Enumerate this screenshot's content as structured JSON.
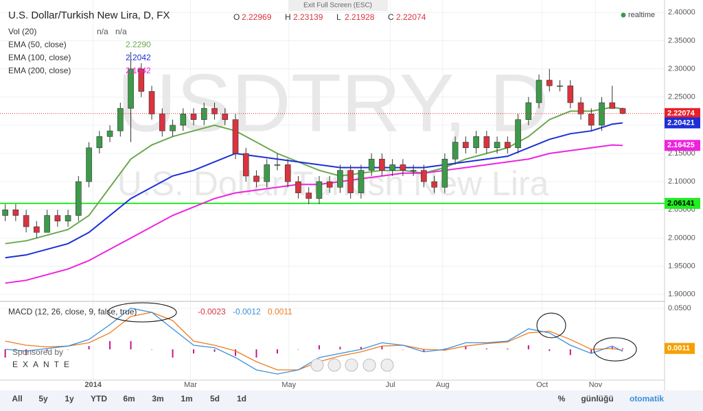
{
  "header": {
    "exit": "Exit Full Screen (ESC)",
    "title": "U.S. Dollar/Turkish New Lira, D, FX",
    "ohlc": [
      [
        "O",
        "2.22969"
      ],
      [
        "H",
        "2.23139"
      ],
      [
        "L",
        "2.21928"
      ],
      [
        "C",
        "2.22074"
      ]
    ],
    "realtime": "realtime"
  },
  "legend": [
    {
      "name": "Vol (20)",
      "values": [
        "n/a",
        "n/a"
      ]
    },
    {
      "name": "EMA (50, close)",
      "values": [
        "2.2290"
      ]
    },
    {
      "name": "EMA (100, close)",
      "values": [
        "2.2042"
      ]
    },
    {
      "name": "EMA (200, close)",
      "values": [
        "2.1642"
      ]
    }
  ],
  "watermark": [
    "USDTRY, D",
    "U.S. Dollar/Turkish New Lira"
  ],
  "macd_legend": {
    "name": "MACD (12, 26, close, 9, false, true)",
    "values": [
      "-0.0023",
      "-0.0012",
      "0.0011"
    ]
  },
  "sponsor": [
    "Sponsored by",
    "EXANTE"
  ],
  "toolbar_left": [
    "All",
    "5y",
    "1y",
    "YTD",
    "6m",
    "3m",
    "1m",
    "5d",
    "1d"
  ],
  "toolbar_right": [
    "%",
    "günlüğü",
    "otomatik"
  ],
  "chart_data": {
    "type": "candlestick",
    "up_color": "#3d9a4a",
    "down_color": "#d9343f",
    "xlim": [
      -0.5,
      63
    ],
    "xticks": [
      {
        "value": 8.4,
        "label": "2014"
      },
      {
        "value": 17.7,
        "label": "Mar"
      },
      {
        "value": 27.1,
        "label": "May"
      },
      {
        "value": 36.8,
        "label": "Jul"
      },
      {
        "value": 41.8,
        "label": "Aug"
      },
      {
        "value": 51.3,
        "label": "Oct"
      },
      {
        "value": 56.4,
        "label": "Nov"
      }
    ],
    "ylim": [
      1.89,
      2.41
    ],
    "yticks": [
      {
        "value": 1.9,
        "label": "1.90000"
      },
      {
        "value": 1.95,
        "label": "1.95000"
      },
      {
        "value": 2.0,
        "label": "2.00000"
      },
      {
        "value": 2.05,
        "label": "2.05000"
      },
      {
        "value": 2.1,
        "label": "2.10000"
      },
      {
        "value": 2.15,
        "label": "2.15000"
      },
      {
        "value": 2.2,
        "label": "2.20000"
      },
      {
        "value": 2.25,
        "label": "2.25000"
      },
      {
        "value": 2.3,
        "label": "2.30000"
      },
      {
        "value": 2.35,
        "label": "2.35000"
      },
      {
        "value": 2.4,
        "label": "2.40000"
      }
    ],
    "grid": true,
    "open": [
      2.04,
      2.05,
      2.04,
      2.02,
      2.01,
      2.04,
      2.03,
      2.04,
      2.1,
      2.16,
      2.18,
      2.19,
      2.23,
      2.3,
      2.26,
      2.22,
      2.19,
      2.2,
      2.22,
      2.21,
      2.23,
      2.22,
      2.21,
      2.15,
      2.11,
      2.1,
      2.13,
      2.13,
      2.1,
      2.08,
      2.07,
      2.1,
      2.09,
      2.12,
      2.08,
      2.12,
      2.14,
      2.12,
      2.13,
      2.12,
      2.12,
      2.1,
      2.09,
      2.14,
      2.17,
      2.16,
      2.18,
      2.16,
      2.17,
      2.16,
      2.21,
      2.24,
      2.28,
      2.27,
      2.27,
      2.24,
      2.22,
      2.2,
      2.24,
      2.22969
    ],
    "high": [
      2.06,
      2.06,
      2.05,
      2.03,
      2.05,
      2.05,
      2.05,
      2.11,
      2.17,
      2.19,
      2.2,
      2.24,
      2.33,
      2.31,
      2.27,
      2.23,
      2.21,
      2.23,
      2.23,
      2.24,
      2.24,
      2.23,
      2.22,
      2.16,
      2.12,
      2.14,
      2.15,
      2.14,
      2.11,
      2.09,
      2.11,
      2.11,
      2.13,
      2.13,
      2.13,
      2.15,
      2.15,
      2.14,
      2.14,
      2.13,
      2.13,
      2.11,
      2.15,
      2.18,
      2.18,
      2.19,
      2.19,
      2.18,
      2.18,
      2.22,
      2.25,
      2.29,
      2.3,
      2.28,
      2.28,
      2.25,
      2.23,
      2.25,
      2.27,
      2.23139
    ],
    "low": [
      2.03,
      2.03,
      2.01,
      2.0,
      2.01,
      2.02,
      2.02,
      2.03,
      2.09,
      2.15,
      2.17,
      2.18,
      2.17,
      2.25,
      2.21,
      2.18,
      2.18,
      2.19,
      2.2,
      2.2,
      2.21,
      2.2,
      2.14,
      2.1,
      2.09,
      2.09,
      2.12,
      2.09,
      2.07,
      2.06,
      2.06,
      2.08,
      2.08,
      2.07,
      2.07,
      2.11,
      2.11,
      2.11,
      2.11,
      2.11,
      2.09,
      2.08,
      2.08,
      2.13,
      2.15,
      2.15,
      2.15,
      2.15,
      2.15,
      2.15,
      2.2,
      2.23,
      2.26,
      2.26,
      2.23,
      2.21,
      2.19,
      2.19,
      2.23,
      2.21928
    ],
    "close": [
      2.05,
      2.04,
      2.02,
      2.01,
      2.04,
      2.03,
      2.04,
      2.1,
      2.16,
      2.18,
      2.19,
      2.23,
      2.3,
      2.26,
      2.22,
      2.19,
      2.2,
      2.22,
      2.21,
      2.23,
      2.22,
      2.21,
      2.15,
      2.11,
      2.1,
      2.13,
      2.13,
      2.1,
      2.08,
      2.07,
      2.1,
      2.09,
      2.12,
      2.08,
      2.12,
      2.14,
      2.12,
      2.13,
      2.12,
      2.12,
      2.1,
      2.09,
      2.14,
      2.17,
      2.16,
      2.18,
      2.16,
      2.17,
      2.16,
      2.21,
      2.24,
      2.28,
      2.27,
      2.27,
      2.24,
      2.22,
      2.2,
      2.24,
      2.22969,
      2.22074
    ],
    "series": [
      {
        "name": "EMA (50, close)",
        "color": "#6aa84f",
        "x": [
          0,
          2,
          4,
          6,
          8,
          10,
          12,
          14,
          16,
          18,
          20,
          22,
          24,
          26,
          28,
          30,
          32,
          34,
          36,
          38,
          40,
          42,
          44,
          46,
          48,
          50,
          52,
          54,
          56,
          58,
          59
        ],
        "values": [
          1.99,
          1.995,
          2.005,
          2.015,
          2.04,
          2.09,
          2.14,
          2.165,
          2.18,
          2.19,
          2.2,
          2.19,
          2.17,
          2.15,
          2.135,
          2.12,
          2.11,
          2.115,
          2.12,
          2.12,
          2.115,
          2.125,
          2.14,
          2.15,
          2.16,
          2.18,
          2.21,
          2.225,
          2.225,
          2.232,
          2.229
        ]
      },
      {
        "name": "EMA (100, close)",
        "color": "#1c2fd6",
        "x": [
          0,
          2,
          4,
          6,
          8,
          10,
          12,
          14,
          16,
          18,
          20,
          22,
          24,
          26,
          28,
          30,
          32,
          34,
          36,
          38,
          40,
          42,
          44,
          46,
          48,
          50,
          52,
          54,
          56,
          58,
          59
        ],
        "values": [
          1.965,
          1.97,
          1.98,
          1.99,
          2.01,
          2.04,
          2.07,
          2.09,
          2.11,
          2.12,
          2.135,
          2.15,
          2.145,
          2.14,
          2.135,
          2.13,
          2.125,
          2.125,
          2.125,
          2.125,
          2.125,
          2.13,
          2.135,
          2.14,
          2.145,
          2.16,
          2.175,
          2.185,
          2.19,
          2.202,
          2.2042
        ]
      },
      {
        "name": "EMA (200, close)",
        "color": "#ee22dd",
        "x": [
          0,
          2,
          4,
          6,
          8,
          10,
          12,
          14,
          16,
          18,
          20,
          22,
          24,
          26,
          28,
          30,
          32,
          34,
          36,
          38,
          40,
          42,
          44,
          46,
          48,
          50,
          52,
          54,
          56,
          58,
          59
        ],
        "values": [
          1.92,
          1.925,
          1.935,
          1.945,
          1.96,
          1.98,
          2.0,
          2.02,
          2.04,
          2.055,
          2.07,
          2.08,
          2.085,
          2.09,
          2.095,
          2.095,
          2.1,
          2.105,
          2.11,
          2.115,
          2.115,
          2.12,
          2.125,
          2.13,
          2.135,
          2.14,
          2.15,
          2.155,
          2.16,
          2.165,
          2.1642
        ]
      }
    ],
    "price_tags": [
      {
        "value": 2.22074,
        "color": "#e8202a"
      },
      {
        "value": 2.20421,
        "color": "#1c2fd6"
      },
      {
        "value": 2.16425,
        "color": "#ee22dd"
      }
    ],
    "hline": {
      "value": 2.06141,
      "color": "#22ee22"
    },
    "macd": {
      "y2lim": [
        -0.0375,
        0.0558
      ],
      "y2ticks": [
        {
          "value": 0.05,
          "label": "0.0500"
        }
      ],
      "x": [
        0,
        2,
        4,
        6,
        8,
        10,
        12,
        14,
        16,
        18,
        20,
        22,
        24,
        26,
        28,
        30,
        32,
        34,
        36,
        38,
        40,
        42,
        44,
        46,
        48,
        50,
        52,
        54,
        56,
        58,
        59
      ],
      "macd": {
        "color": "#3a8fd9",
        "values": [
          0.0,
          -0.002,
          0.001,
          0.004,
          0.012,
          0.03,
          0.05,
          0.045,
          0.025,
          0.005,
          0.002,
          -0.01,
          -0.025,
          -0.03,
          -0.025,
          -0.01,
          -0.005,
          0.0,
          0.008,
          0.005,
          -0.003,
          0.0,
          0.008,
          0.008,
          0.01,
          0.025,
          0.02,
          0.005,
          -0.005,
          0.004,
          -0.0023
        ]
      },
      "signal": {
        "color": "#f07a20",
        "values": [
          0.01,
          0.005,
          0.003,
          0.004,
          0.008,
          0.02,
          0.04,
          0.045,
          0.035,
          0.01,
          0.005,
          -0.002,
          -0.015,
          -0.025,
          -0.025,
          -0.015,
          -0.008,
          -0.003,
          0.004,
          0.005,
          0.0,
          -0.001,
          0.004,
          0.007,
          0.009,
          0.02,
          0.022,
          0.012,
          0.0,
          0.001,
          -0.0012
        ]
      },
      "histogram": {
        "color": "#c2188a",
        "values": [
          -0.01,
          -0.007,
          -0.002,
          0.0,
          0.004,
          0.01,
          0.01,
          0.0,
          -0.01,
          -0.005,
          -0.003,
          -0.008,
          -0.01,
          -0.005,
          0.0,
          0.005,
          0.003,
          0.003,
          0.004,
          0.0,
          -0.003,
          0.001,
          0.004,
          0.001,
          0.001,
          0.005,
          -0.002,
          -0.007,
          -0.005,
          0.003,
          0.0011
        ]
      },
      "tag": {
        "value": 0.0011,
        "color": "#f5a000"
      }
    }
  }
}
